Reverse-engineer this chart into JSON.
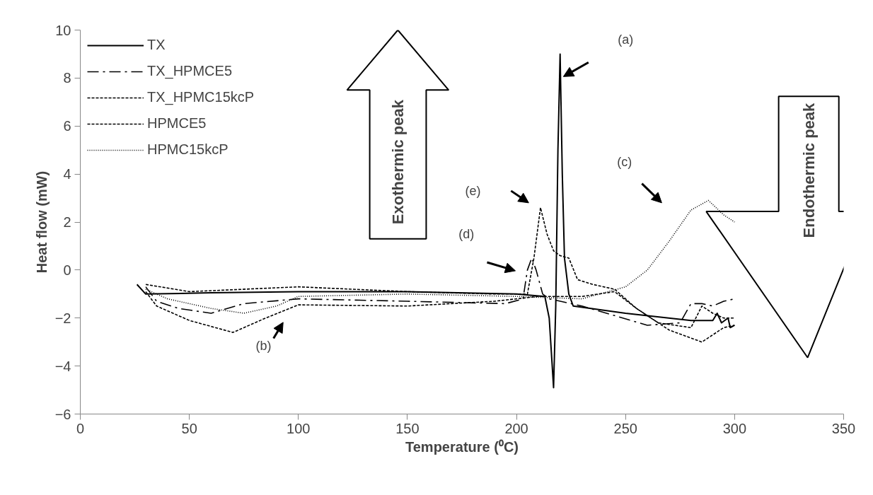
{
  "chart_data": {
    "type": "line",
    "xlabel": "Temperature (⁰C)",
    "ylabel": "Heat flow (mW)",
    "xlim": [
      0,
      350
    ],
    "xticks": [
      0,
      50,
      100,
      150,
      200,
      250,
      300,
      350
    ],
    "ylim": [
      -6,
      10
    ],
    "yticks": [
      -6,
      -4,
      -2,
      0,
      2,
      4,
      6,
      8,
      10
    ],
    "grid": false,
    "legend": "top left",
    "marker": "none",
    "series": [
      {
        "name": "TX",
        "color": "#000000",
        "line_style": "solid",
        "x": [
          26,
          30,
          60,
          100,
          150,
          200,
          213,
          215,
          217,
          218,
          219,
          220,
          221,
          222,
          224,
          226,
          250,
          280,
          290,
          292,
          294,
          297,
          298,
          300
        ],
        "values": [
          -0.6,
          -1.0,
          -0.95,
          -0.9,
          -0.9,
          -1.0,
          -1.1,
          -2.0,
          -4.9,
          -1.5,
          5.0,
          9.0,
          4.0,
          0.5,
          -1.0,
          -1.5,
          -1.8,
          -2.1,
          -2.1,
          -1.8,
          -2.2,
          -2.0,
          -2.4,
          -2.3
        ]
      },
      {
        "name": "TX_HPMCE5",
        "color": "#000000",
        "line_style": "dashdot",
        "x": [
          30,
          35,
          45,
          60,
          75,
          100,
          150,
          195,
          203,
          205,
          207,
          209,
          212,
          215,
          230,
          245,
          260,
          275,
          280,
          285,
          290,
          295,
          300
        ],
        "values": [
          -0.7,
          -1.3,
          -1.6,
          -1.8,
          -1.4,
          -1.2,
          -1.3,
          -1.4,
          -1.2,
          0.0,
          0.5,
          0.0,
          -1.0,
          -1.2,
          -1.5,
          -1.9,
          -2.3,
          -2.2,
          -1.4,
          -1.4,
          -1.5,
          -1.3,
          -1.2
        ]
      },
      {
        "name": "TX_HPMC15kcP",
        "color": "#000000",
        "line_style": "dashed",
        "x": [
          30,
          50,
          100,
          150,
          190,
          205,
          208,
          211,
          214,
          217,
          220,
          224,
          228,
          235,
          245,
          255,
          265,
          280,
          285,
          290,
          295,
          300
        ],
        "values": [
          -0.6,
          -0.9,
          -0.7,
          -0.9,
          -1.0,
          -1.0,
          0.5,
          2.6,
          1.5,
          0.8,
          0.6,
          0.5,
          -0.4,
          -0.6,
          -0.8,
          -1.6,
          -2.2,
          -2.4,
          -1.5,
          -1.8,
          -2.0,
          -2.0
        ]
      },
      {
        "name": "HPMCE5",
        "color": "#000000",
        "line_style": "dashed",
        "x": [
          30,
          35,
          50,
          70,
          85,
          100,
          150,
          190,
          210,
          230,
          245,
          255,
          270,
          285,
          295,
          300
        ],
        "values": [
          -0.9,
          -1.5,
          -2.1,
          -2.6,
          -2.0,
          -1.45,
          -1.5,
          -1.3,
          -1.1,
          -1.1,
          -0.9,
          -1.6,
          -2.5,
          -3.0,
          -2.4,
          -2.3
        ]
      },
      {
        "name": "HPMC15kcP",
        "color": "#000000",
        "line_style": "dotted",
        "x": [
          30,
          40,
          60,
          75,
          90,
          100,
          150,
          200,
          230,
          250,
          260,
          270,
          280,
          288,
          295,
          300
        ],
        "values": [
          -0.8,
          -1.2,
          -1.6,
          -1.8,
          -1.5,
          -1.1,
          -1.0,
          -1.1,
          -1.2,
          -0.7,
          0.0,
          1.2,
          2.5,
          2.9,
          2.3,
          2.0
        ]
      }
    ],
    "annotations": [
      "(a)",
      "(b)",
      "(c)",
      "(d)",
      "(e)",
      "Exothermic peak",
      "Endothermic peak"
    ]
  }
}
